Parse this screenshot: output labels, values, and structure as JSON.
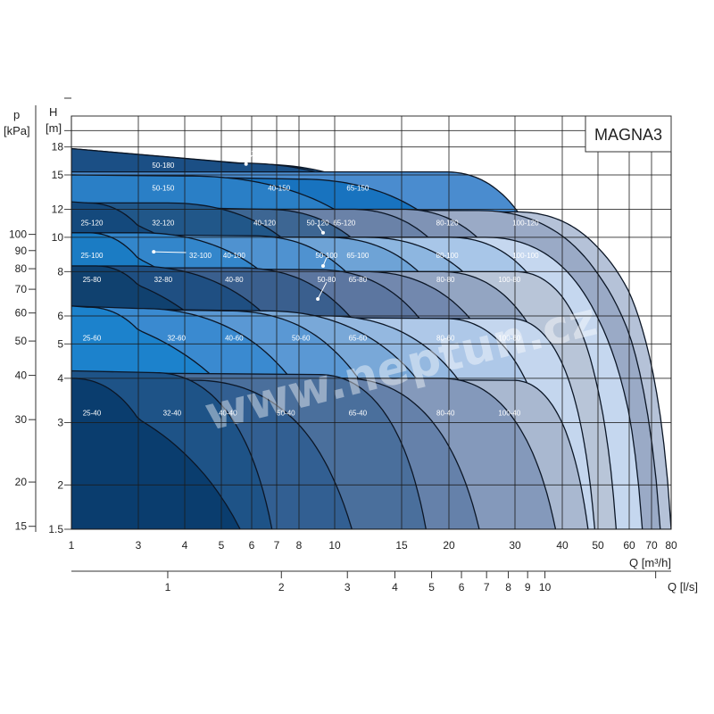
{
  "chart_data": {
    "type": "area",
    "title": "MAGNA3",
    "watermark": "www.neptun.cz",
    "grid": true,
    "x_axis": {
      "label": "Q [m³/h]",
      "scale": "log",
      "range": [
        1,
        80
      ],
      "ticks": [
        1,
        3,
        4,
        5,
        6,
        7,
        8,
        10,
        15,
        20,
        30,
        40,
        50,
        60,
        70,
        80
      ]
    },
    "x2_axis": {
      "label": "Q [l/s]",
      "ticks": [
        1,
        2,
        3,
        4,
        5,
        6,
        7,
        8,
        9,
        10
      ],
      "unlabeled_ticks": [
        20
      ]
    },
    "y_axis": {
      "label": "H",
      "unit": "[m]",
      "scale": "log",
      "range": [
        1.5,
        22
      ],
      "ticks": [
        1.5,
        2,
        3,
        4,
        5,
        6,
        8,
        10,
        12,
        15,
        18
      ],
      "unlabeled_gridlines": [
        20
      ]
    },
    "y2_axis": {
      "label": "p",
      "unit": "[kPa]",
      "ticks": [
        15,
        20,
        30,
        40,
        50,
        60,
        70,
        80,
        90,
        100
      ]
    },
    "series": [
      {
        "name": "40-180",
        "h_start": 17.8,
        "q_knee": 6.0,
        "h_knee": 16.1,
        "q_end": 32,
        "color": "#275d92"
      },
      {
        "name": "50-180",
        "h_start": 17.8,
        "q_knee": 5.5,
        "h_knee": 16.2,
        "q_end": 30,
        "color": "#1b4f85"
      },
      {
        "name": "65-150",
        "h_start": 15.3,
        "q_knee": 19.5,
        "h_knee": 15.3,
        "q_end": 45,
        "color": "#4a8ccf"
      },
      {
        "name": "40-150",
        "h_start": 15.0,
        "q_knee": 8.0,
        "h_knee": 14.6,
        "q_end": 36,
        "color": "#1873bf"
      },
      {
        "name": "50-150",
        "h_start": 15.0,
        "q_knee": 4.0,
        "h_knee": 14.9,
        "q_end": 25,
        "color": "#2a7fc6"
      },
      {
        "name": "100-120",
        "h_start": 11.8,
        "q_knee": 30,
        "h_knee": 11.8,
        "q_end": 80,
        "color": "#b5c2d8"
      },
      {
        "name": "80-120",
        "h_start": 12.0,
        "q_knee": 24,
        "h_knee": 11.9,
        "q_end": 74.3,
        "color": "#9aaac6"
      },
      {
        "name": "65-120",
        "h_start": 12.0,
        "q_knee": 15,
        "h_knee": 12.0,
        "q_end": 40,
        "color": "#7f93b5"
      },
      {
        "name": "50-120",
        "h_start": 12.0,
        "q_knee": 11,
        "h_knee": 12.0,
        "q_end": 30,
        "color": "#6a82a8"
      },
      {
        "name": "40-120",
        "h_start": 12.3,
        "q_knee": 6.5,
        "h_knee": 12.0,
        "q_end": 20,
        "color": "#3d6693"
      },
      {
        "name": "32-120",
        "h_start": 12.5,
        "q_knee": 3.6,
        "h_knee": 12.5,
        "q_end": 14,
        "color": "#215789"
      },
      {
        "name": "25-120",
        "h_start": 12.6,
        "q_knee": 1.3,
        "h_knee": 12.5,
        "q_end": 9,
        "color": "#14497c"
      },
      {
        "name": "100-100",
        "h_start": 10.0,
        "q_knee": 25,
        "h_knee": 10.0,
        "q_end": 65.7,
        "color": "#c5d7ef"
      },
      {
        "name": "80-100",
        "h_start": 10.0,
        "q_knee": 20,
        "h_knee": 10.0,
        "q_end": 50,
        "color": "#a8c6e8"
      },
      {
        "name": "65-100",
        "h_start": 10.0,
        "q_knee": 12,
        "h_knee": 10.0,
        "q_end": 38,
        "color": "#8db6e0"
      },
      {
        "name": "50-100",
        "h_start": 10.1,
        "q_knee": 9.5,
        "h_knee": 10.0,
        "q_end": 28,
        "color": "#6ea3d6"
      },
      {
        "name": "40-100",
        "h_start": 10.2,
        "q_knee": 6.0,
        "h_knee": 10.1,
        "q_end": 18,
        "color": "#4f92d0"
      },
      {
        "name": "32-100",
        "h_start": 10.3,
        "q_knee": 3.0,
        "h_knee": 10.3,
        "q_end": 12,
        "color": "#3386cb"
      },
      {
        "name": "25-100",
        "h_start": 10.3,
        "q_knee": 1.3,
        "h_knee": 10.3,
        "q_end": 8,
        "color": "#1b7cc4"
      },
      {
        "name": "100-80",
        "h_start": 8.0,
        "q_knee": 30,
        "h_knee": 8.0,
        "q_end": 55.6,
        "color": "#b8c5d8"
      },
      {
        "name": "80-80",
        "h_start": 8.0,
        "q_knee": 19,
        "h_knee": 8.0,
        "q_end": 45,
        "color": "#93a5c2"
      },
      {
        "name": "65-80",
        "h_start": 8.1,
        "q_knee": 12,
        "h_knee": 8.0,
        "q_end": 35,
        "color": "#7288ae"
      },
      {
        "name": "50-80",
        "h_start": 8.2,
        "q_knee": 9.0,
        "h_knee": 8.1,
        "q_end": 25,
        "color": "#5c76a0"
      },
      {
        "name": "40-80",
        "h_start": 8.2,
        "q_knee": 5.6,
        "h_knee": 8.2,
        "q_end": 17,
        "color": "#3a5f8e"
      },
      {
        "name": "32-80",
        "h_start": 8.3,
        "q_knee": 2.9,
        "h_knee": 8.3,
        "q_end": 11,
        "color": "#1f4f82"
      },
      {
        "name": "25-80",
        "h_start": 8.3,
        "q_knee": 1.5,
        "h_knee": 8.3,
        "q_end": 8,
        "color": "#10416f"
      },
      {
        "name": "100-60",
        "h_start": 5.9,
        "q_knee": 29,
        "h_knee": 5.9,
        "q_end": 49,
        "color": "#c4d6ee"
      },
      {
        "name": "80-60",
        "h_start": 6.0,
        "q_knee": 19.5,
        "h_knee": 5.9,
        "q_end": 40,
        "color": "#aec8e8"
      },
      {
        "name": "65-60",
        "h_start": 6.3,
        "q_knee": 9.5,
        "h_knee": 6.0,
        "q_end": 30,
        "color": "#94b8e0"
      },
      {
        "name": "50-60",
        "h_start": 6.3,
        "q_knee": 6.5,
        "h_knee": 6.2,
        "q_end": 24,
        "color": "#79a8d8"
      },
      {
        "name": "40-60",
        "h_start": 6.3,
        "q_knee": 5.2,
        "h_knee": 6.2,
        "q_end": 16,
        "color": "#5a98d4"
      },
      {
        "name": "32-60",
        "h_start": 6.4,
        "q_knee": 3.0,
        "h_knee": 6.3,
        "q_end": 11,
        "color": "#3a8ad0"
      },
      {
        "name": "25-60",
        "h_start": 6.4,
        "q_knee": 1.3,
        "h_knee": 6.35,
        "q_end": 8,
        "color": "#1c82cc"
      },
      {
        "name": "100-40",
        "h_start": 4.0,
        "q_knee": 29.5,
        "h_knee": 3.95,
        "q_end": 47,
        "color": "#a9b8d0"
      },
      {
        "name": "80-40",
        "h_start": 4.0,
        "q_knee": 19,
        "h_knee": 4.0,
        "q_end": 38.4,
        "color": "#8499bb"
      },
      {
        "name": "65-40",
        "h_start": 4.0,
        "q_knee": 10.5,
        "h_knee": 4.0,
        "q_end": 24.1,
        "color": "#6581aa"
      },
      {
        "name": "50-40",
        "h_start": 4.15,
        "q_knee": 9.0,
        "h_knee": 4.1,
        "q_end": 17.4,
        "color": "#4a6f9c"
      },
      {
        "name": "40-40",
        "h_start": 4.05,
        "q_knee": 4.2,
        "h_knee": 3.95,
        "q_end": 11.1,
        "color": "#325f92"
      },
      {
        "name": "32-40",
        "h_start": 4.2,
        "q_knee": 3.3,
        "h_knee": 4.15,
        "q_end": 6.8,
        "color": "#1e5387"
      },
      {
        "name": "25-40",
        "h_start": 4.0,
        "q_knee": 1.0,
        "h_knee": 4.0,
        "q_end": 5.6,
        "color": "#0a3d6e"
      }
    ]
  }
}
